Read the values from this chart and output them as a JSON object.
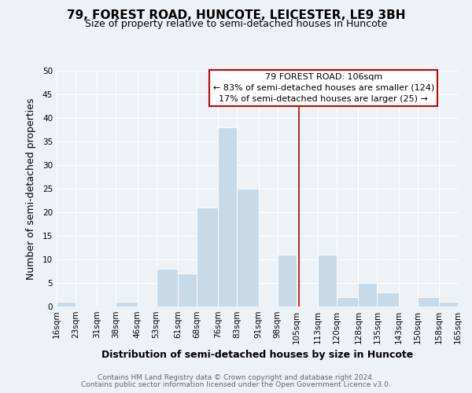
{
  "title": "79, FOREST ROAD, HUNCOTE, LEICESTER, LE9 3BH",
  "subtitle": "Size of property relative to semi-detached houses in Huncote",
  "xlabel": "Distribution of semi-detached houses by size in Huncote",
  "ylabel": "Number of semi-detached properties",
  "footer_line1": "Contains HM Land Registry data © Crown copyright and database right 2024.",
  "footer_line2": "Contains public sector information licensed under the Open Government Licence v3.0.",
  "bin_labels": [
    "16sqm",
    "23sqm",
    "31sqm",
    "38sqm",
    "46sqm",
    "53sqm",
    "61sqm",
    "68sqm",
    "76sqm",
    "83sqm",
    "91sqm",
    "98sqm",
    "105sqm",
    "113sqm",
    "120sqm",
    "128sqm",
    "135sqm",
    "143sqm",
    "150sqm",
    "158sqm",
    "165sqm"
  ],
  "bin_edges": [
    16,
    23,
    31,
    38,
    46,
    53,
    61,
    68,
    76,
    83,
    91,
    98,
    105,
    113,
    120,
    128,
    135,
    143,
    150,
    158,
    165
  ],
  "bar_heights": [
    1,
    0,
    0,
    1,
    0,
    8,
    7,
    21,
    38,
    25,
    0,
    11,
    0,
    11,
    2,
    5,
    3,
    0,
    2,
    1,
    1
  ],
  "bar_color": "#c8d9e8",
  "bar_edge_color": "#ffffff",
  "property_size": 106,
  "vline_color": "#cc0000",
  "annotation_box_edge_color": "#cc0000",
  "ylim": [
    0,
    50
  ],
  "yticks": [
    0,
    5,
    10,
    15,
    20,
    25,
    30,
    35,
    40,
    45,
    50
  ],
  "bg_color": "#edf2f7",
  "title_fontsize": 11,
  "subtitle_fontsize": 9,
  "axis_label_fontsize": 9,
  "tick_fontsize": 7.5,
  "annotation_fontsize": 8,
  "footer_fontsize": 6.5
}
